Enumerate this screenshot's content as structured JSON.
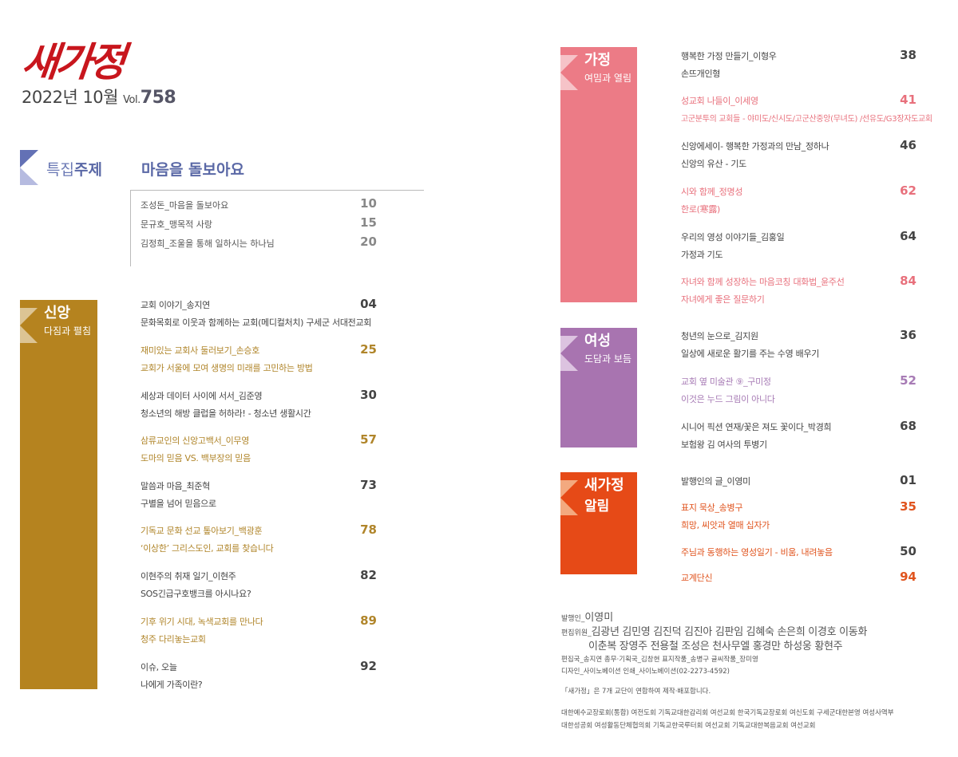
{
  "masthead": {
    "logo": "새가정",
    "year_month": "2022년 10월",
    "vol_label": "Vol.",
    "vol_number": "758"
  },
  "feature": {
    "label_light": "특집",
    "label_bold": "주제",
    "title": "마음을 돌보아요",
    "color": "#5a68a6",
    "items": [
      {
        "title": "조성돈_마음을 돌보아요",
        "page": "10"
      },
      {
        "title": "문규호_맹목적 사랑",
        "page": "15"
      },
      {
        "title": "김정희_조울을 통해 일하시는 하나님",
        "page": "20"
      }
    ]
  },
  "sections": [
    {
      "key": "faith",
      "title": "신앙",
      "subtitle": "다짐과 펼침",
      "color": "#b5831f",
      "light": "#dcc494",
      "accent_text": "#b0852a",
      "entries": [
        {
          "title": "교회 이야기_송지연",
          "subtitle": "문화목회로 이웃과 함께하는 교회(메디컬처치) 구세군 서대전교회",
          "page": "04",
          "highlight": false
        },
        {
          "title": "재미있는 교회사 둘러보기_손승호",
          "subtitle": "교회가 서울에 모여 생명의 미래를 고민하는 방법",
          "page": "25",
          "highlight": true
        },
        {
          "title": "세상과 데이터 사이에 서서_김준영",
          "subtitle": "청소년의 해방 클럽을 허하라! - 청소년 생활시간",
          "page": "30",
          "highlight": false
        },
        {
          "title": "삼류교인의 신앙고백서_이무영",
          "subtitle": "도마의 믿음 VS. 백부장의 믿음",
          "page": "57",
          "highlight": true
        },
        {
          "title": "말씀과 마음_최준혁",
          "subtitle": "구별을 넘어 믿음으로",
          "page": "73",
          "highlight": false
        },
        {
          "title": "기독교 문화 선교 톺아보기_백광훈",
          "subtitle": "‘이상한’ 그리스도인, 교회를 찾습니다",
          "page": "78",
          "highlight": true
        },
        {
          "title": "이현주의 취재 일기_이현주",
          "subtitle": "SOS긴급구호뱅크를 아시나요?",
          "page": "82",
          "highlight": false
        },
        {
          "title": "기후 위기 시대, 녹색교회를 만나다",
          "subtitle": "청주 다리놓는교회",
          "page": "89",
          "highlight": true
        },
        {
          "title": "이슈, 오늘",
          "subtitle": "나에게 가족이란?",
          "page": "92",
          "highlight": false
        }
      ]
    },
    {
      "key": "family",
      "title": "가정",
      "subtitle": "여밈과 열림",
      "color": "#ec7b86",
      "light": "#f6c3c8",
      "accent_text": "#e8707c",
      "entries": [
        {
          "title": "행복한 가정 만들기_이형우",
          "subtitle": "손뜨개인형",
          "page": "38",
          "highlight": false
        },
        {
          "title": "성교회 나들이_이세영",
          "subtitle": "고군분투의 교회들 - 야미도/신시도/고군산중앙(무녀도) /선유도/G3장자도교회",
          "page": "41",
          "highlight": true
        },
        {
          "title": "신앙에세이- 행복한 가정과의 만남_정하나",
          "subtitle": "신앙의 유산 - 기도",
          "page": "46",
          "highlight": false
        },
        {
          "title": "시와 함께_정명성",
          "subtitle": "한로(寒露)",
          "page": "62",
          "highlight": true
        },
        {
          "title": "우리의 영성 이야기들_김홍일",
          "subtitle": "가정과 기도",
          "page": "64",
          "highlight": false
        },
        {
          "title": "자녀와 함께 성장하는 마음코칭 대화법_윤주선",
          "subtitle": "자녀에게 좋은 질문하기",
          "page": "84",
          "highlight": true
        }
      ]
    },
    {
      "key": "women",
      "title": "여성",
      "subtitle": "도담과 보듬",
      "color": "#a874b0",
      "light": "#dcc3e0",
      "accent_text": "#a77bb5",
      "entries": [
        {
          "title": "청년의 눈으로_김지원",
          "subtitle": "일상에 새로운 활기를 주는 수영 배우기",
          "page": "36",
          "highlight": false
        },
        {
          "title": "교회 옆 미술관 ⑨_구미정",
          "subtitle": "이것은 누드 그림이 아니다",
          "page": "52",
          "highlight": true
        },
        {
          "title": "시니어 픽션 연재/꽃은 져도 꽃이다_박경희",
          "subtitle": "보험왕 김 여사의 투병기",
          "page": "68",
          "highlight": false
        }
      ]
    },
    {
      "key": "notice",
      "title": "새가정",
      "subtitle": "알림",
      "color": "#e64a17",
      "light": "#f3a97f",
      "accent_text": "#e0541e",
      "entries": [
        {
          "title": "발행인의 글_이영미",
          "subtitle": "",
          "page": "01",
          "highlight": false
        },
        {
          "title": "표지 묵상_송병구",
          "subtitle": "희망, 씨앗과 열매 십자가",
          "page": "35",
          "highlight": true
        },
        {
          "title": "주님과 동행하는 영성일기 - 비움, 내려놓음",
          "subtitle": "",
          "page": "50",
          "highlight": true,
          "page_plain": true
        },
        {
          "title": "교계단신",
          "subtitle": "",
          "page": "94",
          "highlight": true
        }
      ]
    }
  ],
  "colophon": {
    "publisher_label": "발행인_",
    "publisher": "이영미",
    "editors_label": "편집위원_",
    "editors_line1": "김광년  김민영  김진덕  김진아  김판임  김혜숙  손은희  이경호  이동화",
    "editors_line2": "이춘복  장영주  전용철  조성은  천사무엘  홍경만  하성웅  황현주",
    "staff_line": "편집국_송지연    총무·기획국_김창현    표지작품_송병구    글씨작품_장미영",
    "design_line": "디자인_사이노베이션    인쇄_사이노베이션(02-2273-4592)",
    "note": "「새가정」은 7개 교단이 연합하여 제작·배포합니다.",
    "orgs_line1": "대한예수교장로회(통합) 여전도회  기독교대한감리회 여선교회  한국기독교장로회 여신도회 구세군대한본영 여성사역부",
    "orgs_line2": "대한성공회 여성활동단체협의회 기독교한국루터회 여선교회  기독교대한복음교회 여선교회"
  }
}
